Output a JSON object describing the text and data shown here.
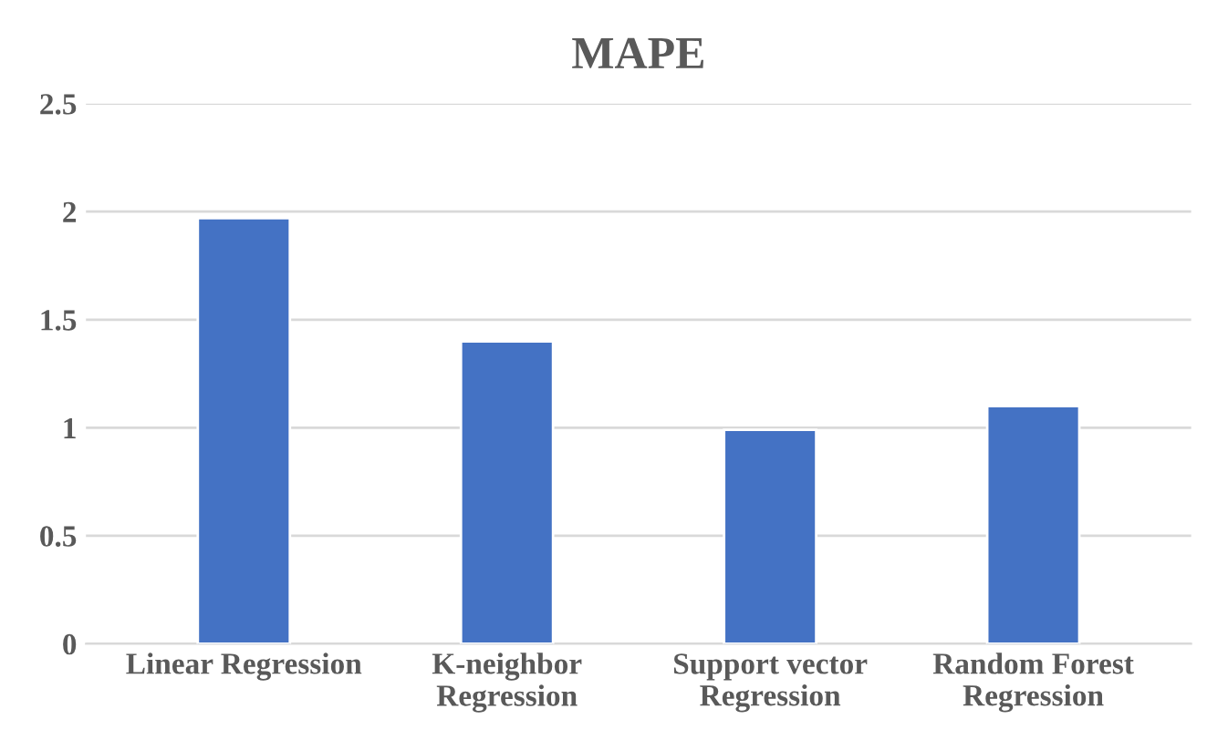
{
  "chart_data": {
    "type": "bar",
    "title": "MAPE",
    "categories": [
      "Linear Regression",
      "K-neighbor\nRegression",
      "Support vector\nRegression",
      "Random Forest\nRegression"
    ],
    "values": [
      1.97,
      1.4,
      0.99,
      1.1
    ],
    "color": "#4472c4",
    "ylim": [
      0,
      2.5
    ],
    "yticks": [
      0,
      0.5,
      1,
      1.5,
      2,
      2.5
    ],
    "grid": "y"
  }
}
